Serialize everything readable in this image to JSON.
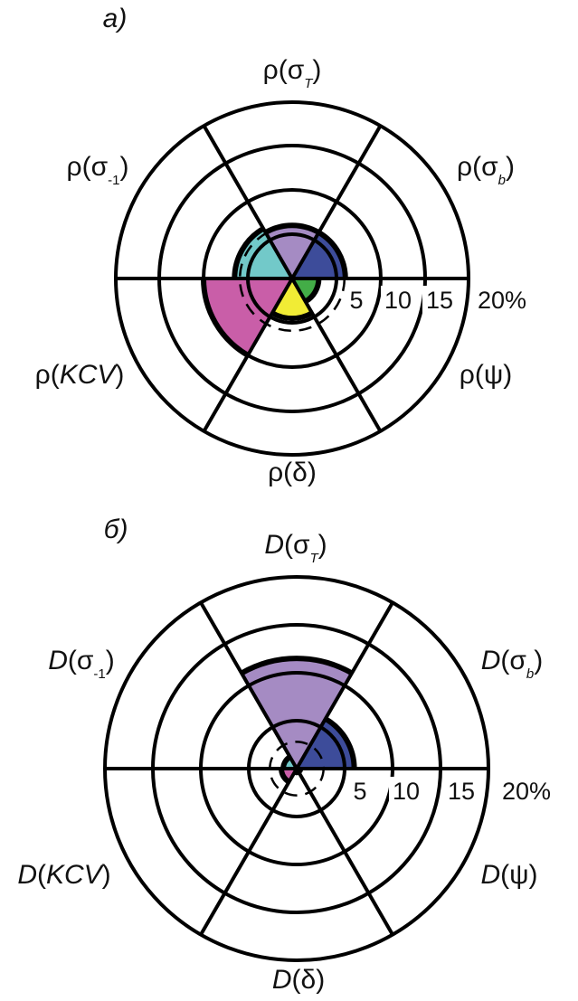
{
  "chart_data": [
    {
      "type": "polar-bar",
      "panel": "а)",
      "ticks": [
        "5",
        "10",
        "15",
        "20%"
      ],
      "tick_values": [
        5,
        10,
        15,
        20
      ],
      "rmax": 20,
      "reference_value": 5.9,
      "categories": [
        {
          "id": "sigma_T",
          "pre": "ρ(",
          "mid": "σ",
          "italic": "",
          "sub": "T",
          "post": ")",
          "value": 6.0,
          "color": "#a58bc3"
        },
        {
          "id": "sigma_b",
          "pre": "ρ(",
          "mid": "σ",
          "italic": "",
          "sub": "b",
          "post": ")",
          "value": 6.0,
          "color": "#3d4c9a"
        },
        {
          "id": "psi",
          "pre": "ρ(",
          "mid": "ψ",
          "italic": "",
          "sub": "",
          "post": ")",
          "value": 3.0,
          "color": "#43ad47"
        },
        {
          "id": "delta",
          "pre": "ρ(",
          "mid": "δ",
          "italic": "",
          "sub": "",
          "post": ")",
          "value": 4.5,
          "color": "#f1ec35"
        },
        {
          "id": "KCV",
          "pre": "ρ(",
          "mid": "",
          "italic": "KCV",
          "sub": "",
          "post": ")",
          "value": 10.0,
          "color": "#c95ea8"
        },
        {
          "id": "sigma_-1",
          "pre": "ρ(",
          "mid": "σ",
          "italic": "",
          "sub": "-1",
          "post": ")",
          "value": 6.5,
          "color": "#72c9c9"
        }
      ]
    },
    {
      "type": "polar-bar",
      "panel": "б)",
      "ticks": [
        "5",
        "10",
        "15",
        "20%"
      ],
      "tick_values": [
        5,
        10,
        15,
        20
      ],
      "rmax": 20,
      "reference_value": 2.8,
      "categories": [
        {
          "id": "sigma_T",
          "pre": "",
          "mid": "(σ",
          "italic": "D",
          "sub": "T",
          "post": ")",
          "value": 11.5,
          "color": "#a58bc3"
        },
        {
          "id": "sigma_b",
          "pre": "",
          "mid": "(σ",
          "italic": "D",
          "sub": "b",
          "post": ")",
          "value": 6.0,
          "color": "#3d4c9a"
        },
        {
          "id": "psi",
          "pre": "",
          "mid": "(ψ",
          "italic": "D",
          "sub": "",
          "post": ")",
          "value": 0.4,
          "color": "#43ad47"
        },
        {
          "id": "delta",
          "pre": "",
          "mid": "(δ",
          "italic": "D",
          "sub": "",
          "post": ")",
          "value": 0.4,
          "color": "#f1ec35"
        },
        {
          "id": "KCV",
          "pre": "",
          "mid": "(",
          "italic": "D",
          "sub": "",
          "post": "KCV)",
          "value": 1.6,
          "color": "#c95ea8"
        },
        {
          "id": "sigma_-1",
          "pre": "",
          "mid": "(σ",
          "italic": "D",
          "sub": "-1",
          "post": ")",
          "value": 1.4,
          "color": "#72c9c9"
        }
      ]
    }
  ]
}
